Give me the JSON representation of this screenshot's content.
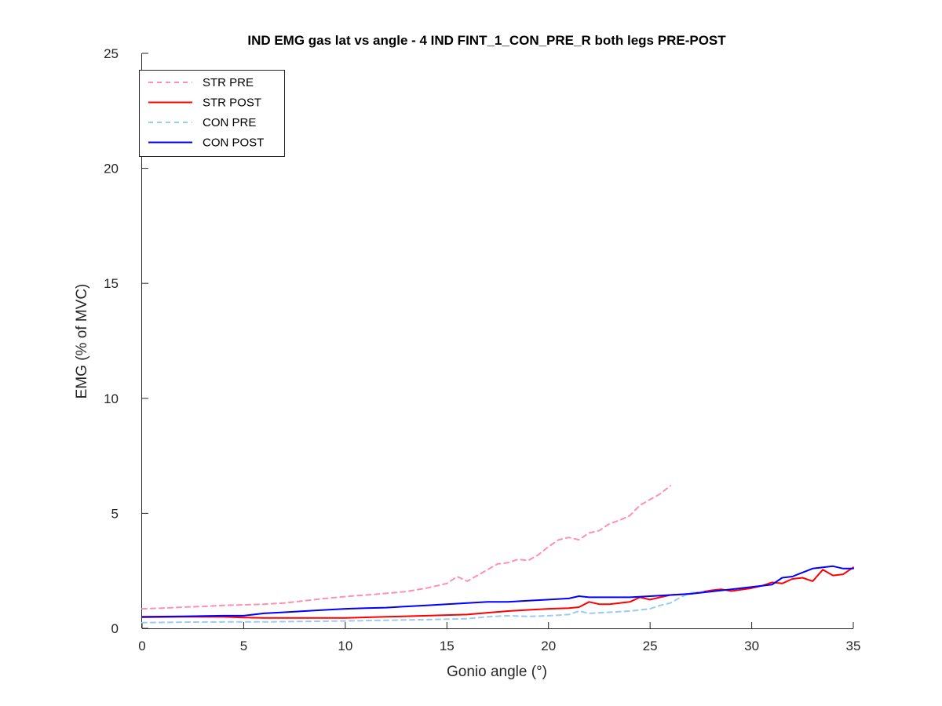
{
  "chart_data": {
    "type": "line",
    "title": "IND EMG gas lat vs angle - 4 IND FINT_1_CON_PRE_R both legs PRE-POST",
    "xlabel": "Gonio angle (°)",
    "ylabel": "EMG (% of MVC)",
    "xlim": [
      0,
      35
    ],
    "ylim": [
      0,
      25
    ],
    "xticks": [
      0,
      5,
      10,
      15,
      20,
      25,
      30,
      35
    ],
    "yticks": [
      0,
      5,
      10,
      15,
      20,
      25
    ],
    "grid": false,
    "legend_position": "top-left",
    "series": [
      {
        "name": "STR PRE",
        "color": "#ff8fb3",
        "dash": "dashed",
        "x": [
          0,
          1,
          2,
          3,
          4,
          5,
          6,
          7,
          8,
          9,
          10,
          11,
          12,
          13,
          14,
          15,
          15.5,
          16,
          16.5,
          17,
          17.5,
          18,
          18.5,
          19,
          19.5,
          20,
          20.5,
          21,
          21.5,
          22,
          22.5,
          23,
          23.5,
          24,
          24.5,
          25,
          25.5,
          26
        ],
        "y": [
          0.85,
          0.88,
          0.92,
          0.95,
          1.0,
          1.02,
          1.05,
          1.1,
          1.2,
          1.3,
          1.38,
          1.45,
          1.52,
          1.6,
          1.75,
          1.95,
          2.25,
          2.05,
          2.3,
          2.55,
          2.8,
          2.85,
          3.0,
          2.95,
          3.2,
          3.55,
          3.85,
          3.95,
          3.85,
          4.15,
          4.25,
          4.55,
          4.7,
          4.9,
          5.35,
          5.6,
          5.85,
          6.2
        ]
      },
      {
        "name": "STR POST",
        "color": "#ff0000",
        "dash": "solid",
        "x": [
          0,
          2,
          4,
          5,
          6,
          8,
          10,
          12,
          14,
          16,
          17,
          18,
          19,
          20,
          21,
          21.5,
          22,
          22.5,
          23,
          24,
          24.5,
          25,
          25.5,
          26,
          27,
          28,
          28.5,
          29,
          30,
          30.5,
          31,
          31.5,
          32,
          32.5,
          33,
          33.5,
          34,
          34.5,
          35
        ],
        "y": [
          0.48,
          0.5,
          0.5,
          0.47,
          0.45,
          0.45,
          0.45,
          0.5,
          0.55,
          0.6,
          0.68,
          0.75,
          0.8,
          0.85,
          0.88,
          0.92,
          1.15,
          1.05,
          1.05,
          1.15,
          1.35,
          1.25,
          1.35,
          1.45,
          1.5,
          1.65,
          1.7,
          1.62,
          1.75,
          1.85,
          2.0,
          1.95,
          2.15,
          2.2,
          2.05,
          2.55,
          2.3,
          2.35,
          2.65
        ]
      },
      {
        "name": "CON PRE",
        "color": "#99ccf0",
        "dash": "dashed",
        "x": [
          0,
          2,
          4,
          6,
          8,
          10,
          12,
          14,
          16,
          17,
          18,
          19,
          20,
          21,
          21.5,
          22,
          23,
          24,
          25,
          25.5,
          26,
          26.5,
          27,
          28
        ],
        "y": [
          0.25,
          0.27,
          0.28,
          0.28,
          0.3,
          0.32,
          0.35,
          0.38,
          0.42,
          0.5,
          0.55,
          0.52,
          0.55,
          0.6,
          0.75,
          0.65,
          0.7,
          0.75,
          0.85,
          1.0,
          1.1,
          1.35,
          1.55,
          1.6
        ]
      },
      {
        "name": "CON POST",
        "color": "#0000ff",
        "dash": "solid",
        "x": [
          0,
          2,
          4,
          5,
          6,
          7,
          8,
          9,
          10,
          11,
          12,
          13,
          14,
          15,
          16,
          17,
          18,
          19,
          20,
          21,
          21.5,
          22,
          23,
          24,
          25,
          26,
          27,
          28,
          29,
          30,
          31,
          31.5,
          32,
          33,
          34,
          34.5,
          35
        ],
        "y": [
          0.5,
          0.52,
          0.55,
          0.55,
          0.65,
          0.7,
          0.75,
          0.8,
          0.85,
          0.88,
          0.9,
          0.95,
          1.0,
          1.05,
          1.1,
          1.15,
          1.15,
          1.2,
          1.25,
          1.3,
          1.4,
          1.35,
          1.35,
          1.35,
          1.4,
          1.45,
          1.5,
          1.6,
          1.7,
          1.8,
          1.9,
          2.2,
          2.25,
          2.6,
          2.7,
          2.6,
          2.6
        ]
      }
    ]
  }
}
